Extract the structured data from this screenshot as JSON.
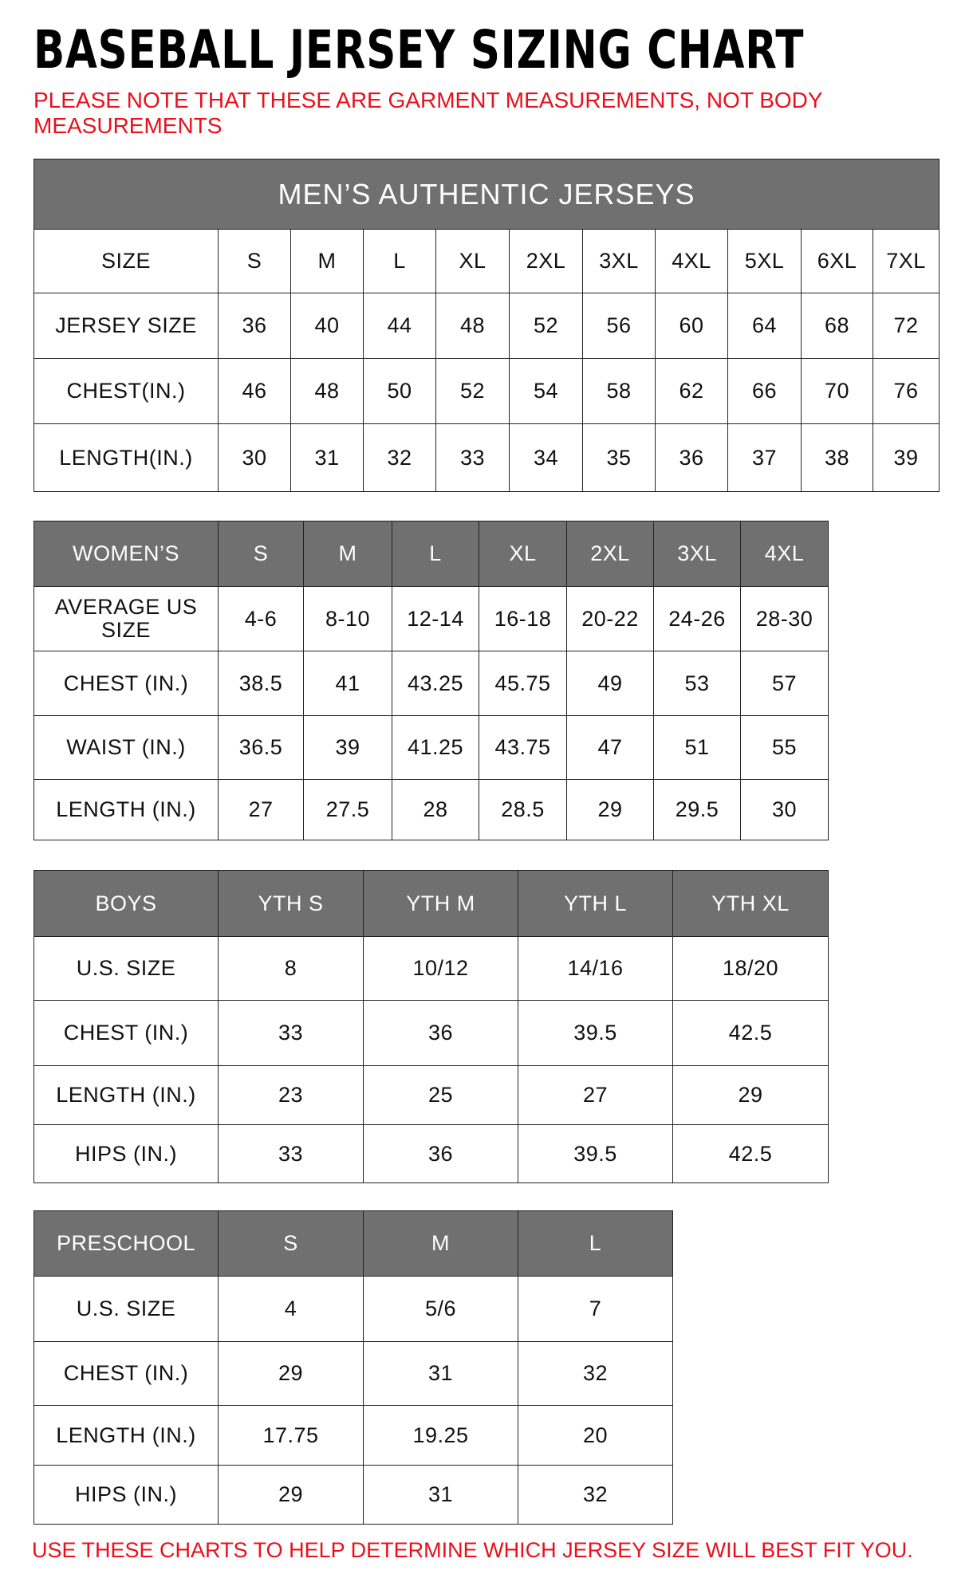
{
  "title": "BASEBALL JERSEY SIZING CHART",
  "note": "PLEASE NOTE THAT THESE ARE GARMENT MEASUREMENTS, NOT BODY MEASUREMENTS",
  "footer": "USE THESE CHARTS TO HELP DETERMINE WHICH JERSEY SIZE WILL BEST FIT YOU.",
  "colors": {
    "header_bg": "#707070",
    "note_red": "#e8101c"
  },
  "mens": {
    "title": "MEN’S AUTHENTIC JERSEYS",
    "header": [
      "SIZE",
      "S",
      "M",
      "L",
      "XL",
      "2XL",
      "3XL",
      "4XL",
      "5XL",
      "6XL",
      "7XL"
    ],
    "rows": [
      [
        "JERSEY SIZE",
        "36",
        "40",
        "44",
        "48",
        "52",
        "56",
        "60",
        "64",
        "68",
        "72"
      ],
      [
        "CHEST(IN.)",
        "46",
        "48",
        "50",
        "52",
        "54",
        "58",
        "62",
        "66",
        "70",
        "76"
      ],
      [
        "LENGTH(IN.)",
        "30",
        "31",
        "32",
        "33",
        "34",
        "35",
        "36",
        "37",
        "38",
        "39"
      ]
    ]
  },
  "womens": {
    "header": [
      "WOMEN’S",
      "S",
      "M",
      "L",
      "XL",
      "2XL",
      "3XL",
      "4XL"
    ],
    "rows": [
      [
        "AVERAGE US SIZE",
        "4-6",
        "8-10",
        "12-14",
        "16-18",
        "20-22",
        "24-26",
        "28-30"
      ],
      [
        "CHEST (IN.)",
        "38.5",
        "41",
        "43.25",
        "45.75",
        "49",
        "53",
        "57"
      ],
      [
        "WAIST (IN.)",
        "36.5",
        "39",
        "41.25",
        "43.75",
        "47",
        "51",
        "55"
      ],
      [
        "LENGTH (IN.)",
        "27",
        "27.5",
        "28",
        "28.5",
        "29",
        "29.5",
        "30"
      ]
    ]
  },
  "boys": {
    "header": [
      "BOYS",
      "YTH S",
      "YTH M",
      "YTH L",
      "YTH XL"
    ],
    "rows": [
      [
        "U.S. SIZE",
        "8",
        "10/12",
        "14/16",
        "18/20"
      ],
      [
        "CHEST (IN.)",
        "33",
        "36",
        "39.5",
        "42.5"
      ],
      [
        "LENGTH (IN.)",
        "23",
        "25",
        "27",
        "29"
      ],
      [
        "HIPS (IN.)",
        "33",
        "36",
        "39.5",
        "42.5"
      ]
    ]
  },
  "preschool": {
    "header": [
      "PRESCHOOL",
      "S",
      "M",
      "L"
    ],
    "rows": [
      [
        "U.S. SIZE",
        "4",
        "5/6",
        "7"
      ],
      [
        "CHEST (IN.)",
        "29",
        "31",
        "32"
      ],
      [
        "LENGTH (IN.)",
        "17.75",
        "19.25",
        "20"
      ],
      [
        "HIPS (IN.)",
        "29",
        "31",
        "32"
      ]
    ]
  }
}
